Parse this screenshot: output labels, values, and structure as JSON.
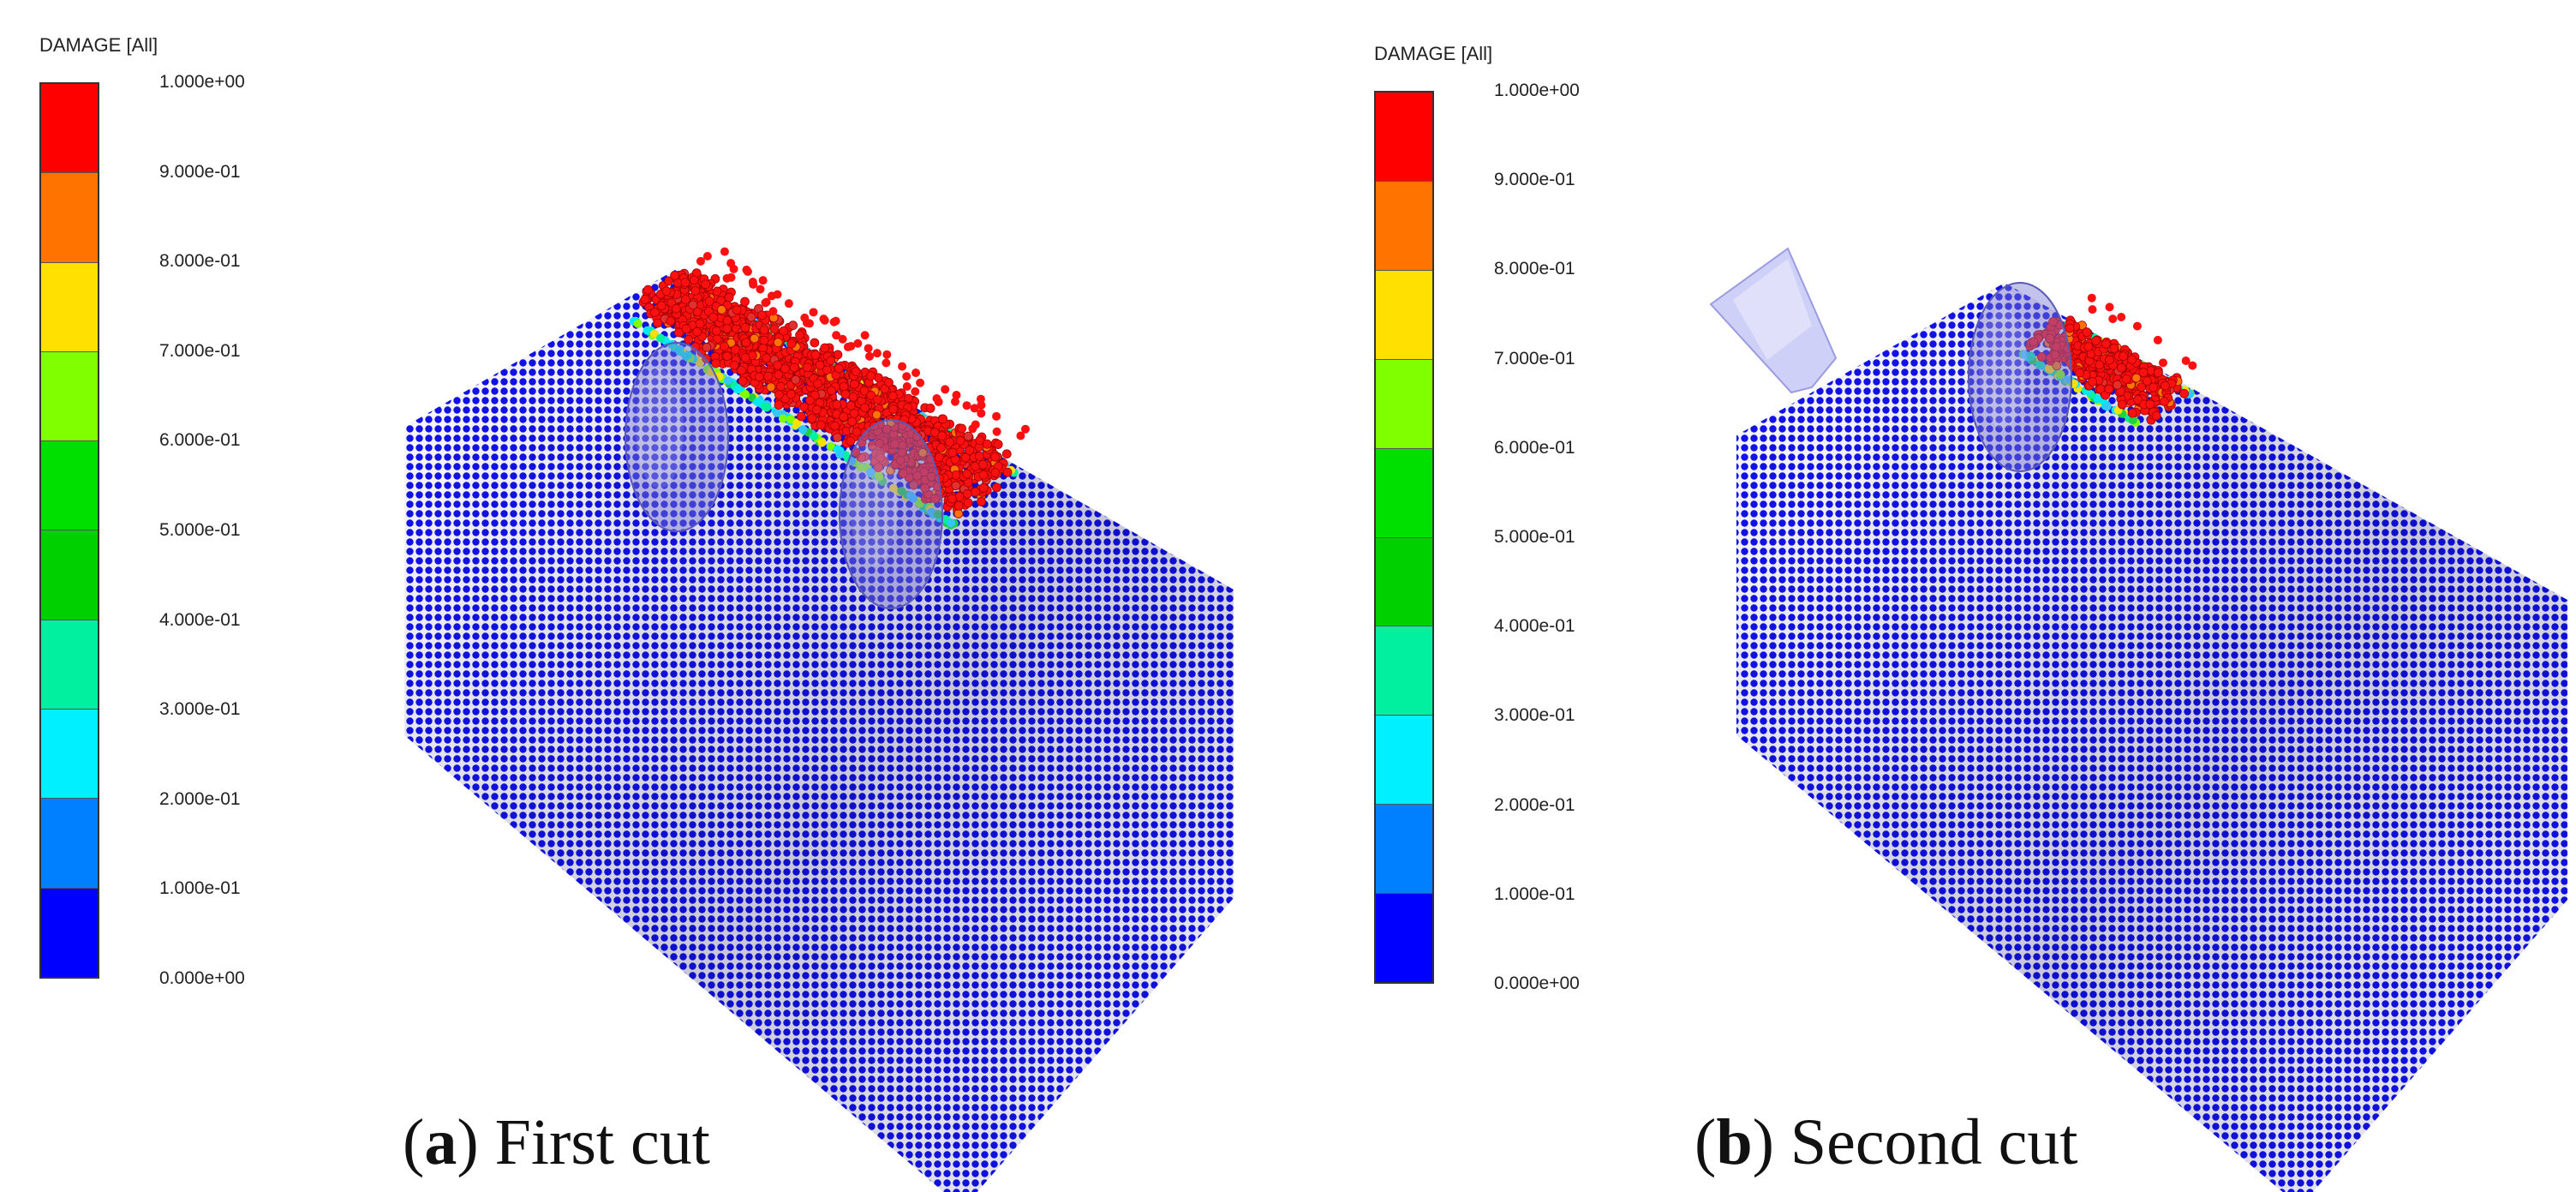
{
  "panels": [
    {
      "id": "a",
      "legend": {
        "title": "DAMAGE [All]",
        "ticks": [
          "1.000e+00",
          "9.000e-01",
          "8.000e-01",
          "7.000e-01",
          "6.000e-01",
          "5.000e-01",
          "4.000e-01",
          "3.000e-01",
          "2.000e-01",
          "1.000e-01",
          "0.000e+00"
        ],
        "colors": [
          "#ff0000",
          "#ff7300",
          "#ffe000",
          "#80ff00",
          "#00e000",
          "#00d000",
          "#00f0a0",
          "#00f0ff",
          "#0080ff",
          "#0000ff"
        ]
      },
      "caption": {
        "letter": "a",
        "text": "First cut"
      }
    },
    {
      "id": "b",
      "legend": {
        "title": "DAMAGE [All]",
        "ticks": [
          "1.000e+00",
          "9.000e-01",
          "8.000e-01",
          "7.000e-01",
          "6.000e-01",
          "5.000e-01",
          "4.000e-01",
          "3.000e-01",
          "2.000e-01",
          "1.000e-01",
          "0.000e+00"
        ],
        "colors": [
          "#ff0000",
          "#ff7300",
          "#ffe000",
          "#80ff00",
          "#00e000",
          "#00d000",
          "#00f0a0",
          "#00f0ff",
          "#0080ff",
          "#0000ff"
        ]
      },
      "caption": {
        "letter": "b",
        "text": "Second cut"
      }
    }
  ]
}
